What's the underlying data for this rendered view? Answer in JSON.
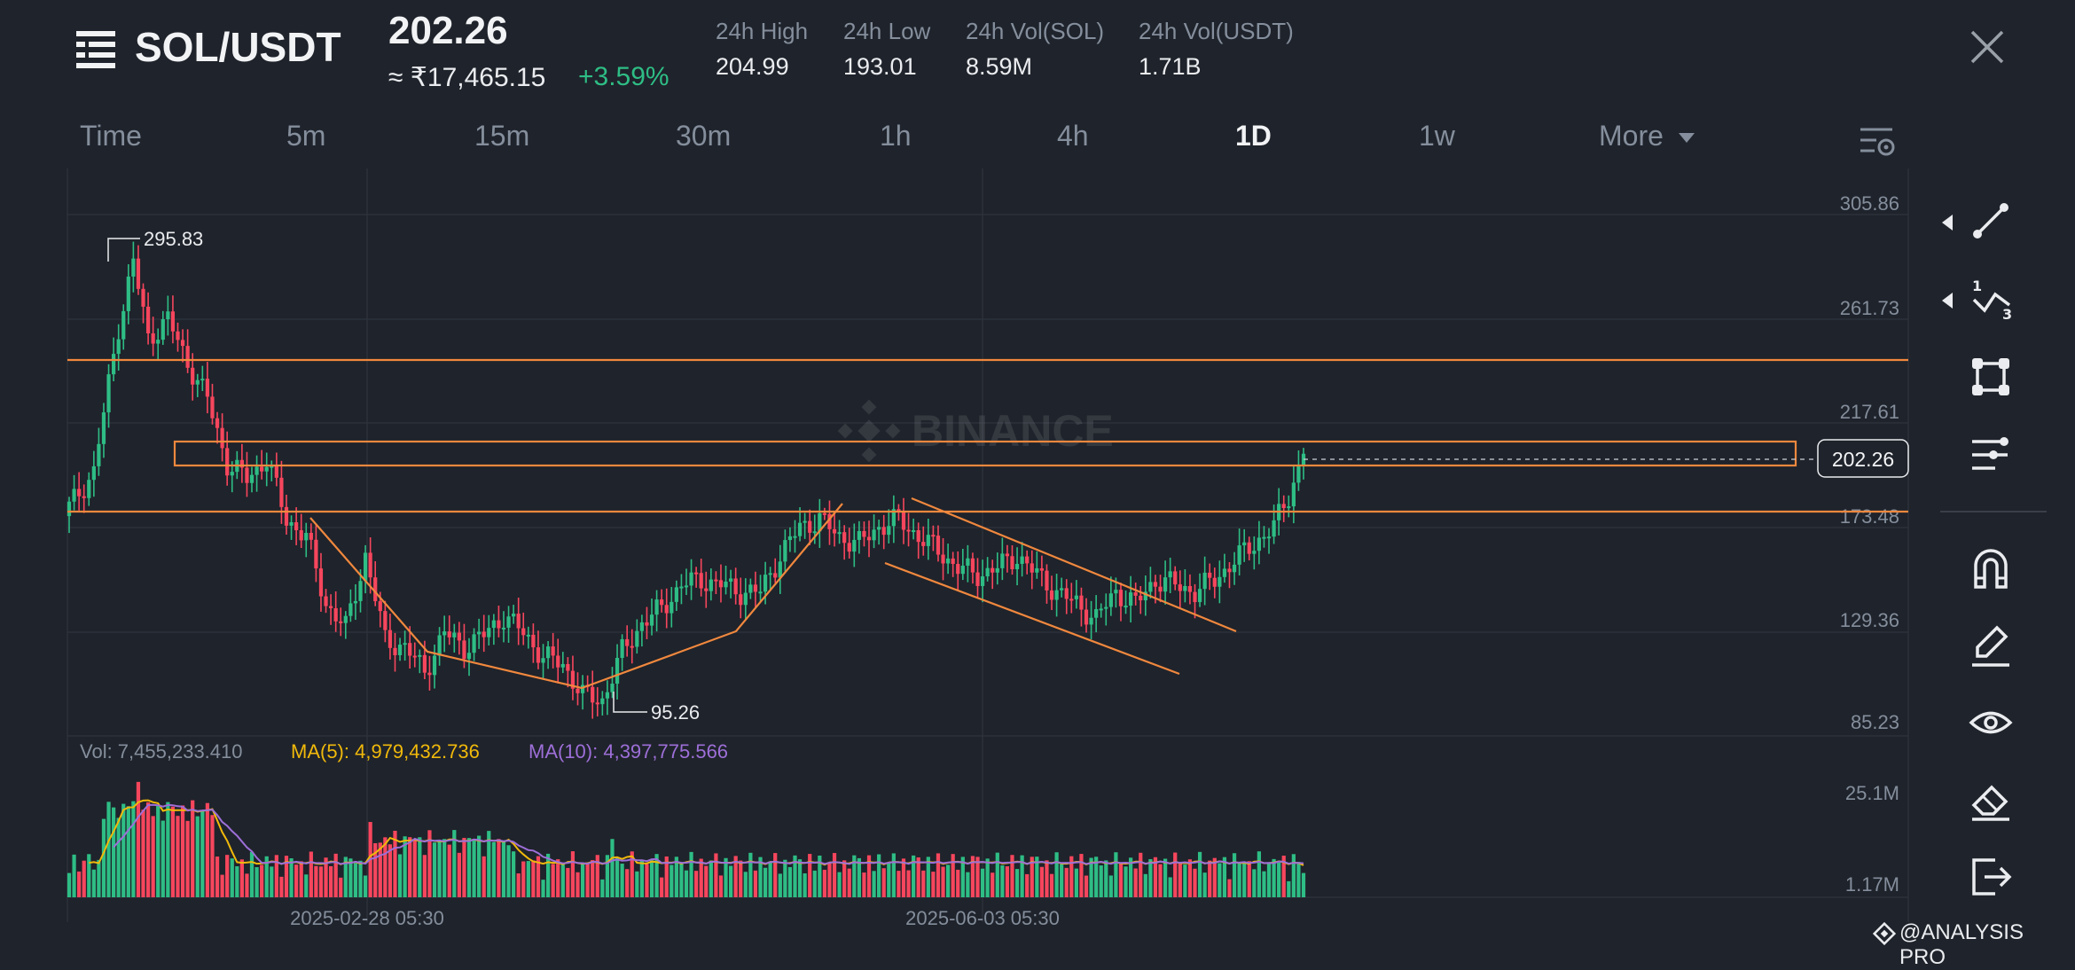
{
  "header": {
    "pair": "SOL/USDT",
    "price": "202.26",
    "fiat_price": "≈ ₹17,465.15",
    "change": "+3.59%",
    "stats": [
      {
        "label": "24h High",
        "value": "204.99"
      },
      {
        "label": "24h Low",
        "value": "193.01"
      },
      {
        "label": "24h Vol(SOL)",
        "value": "8.59M"
      },
      {
        "label": "24h Vol(USDT)",
        "value": "1.71B"
      }
    ]
  },
  "tabs": [
    "Time",
    "5m",
    "15m",
    "30m",
    "1h",
    "4h",
    "1D",
    "1w",
    "More"
  ],
  "active_tab": "1D",
  "price_axis": [
    "305.86",
    "261.73",
    "217.61",
    "173.48",
    "129.36",
    "85.23"
  ],
  "current_price_tag": "202.26",
  "watermark_text": "BINANCE",
  "annotations": {
    "high": "295.83",
    "low": "95.26"
  },
  "volume": {
    "vol_label": "Vol: 7,455,233.410",
    "ma5_label": "MA(5): 4,979,432.736",
    "ma10_label": "MA(10): 4,397,775.566",
    "axis": [
      "25.1M",
      "1.17M"
    ]
  },
  "x_axis": [
    "2025-02-28 05:30",
    "2025-06-03 05:30"
  ],
  "footer": {
    "brand": "@ANALYSIS PRO"
  },
  "colors": {
    "up": "#2ebd85",
    "down": "#f6465d",
    "drawing": "#f0883e",
    "ma5": "#f0b90b",
    "ma10": "#9d6fd8",
    "bg": "#1f232b"
  },
  "toolbar_icons": [
    "trend-line-icon",
    "fibonacci-icon",
    "shape-icon",
    "indicator-icon",
    "magnet-icon",
    "pen-icon",
    "eye-icon",
    "eraser-icon",
    "exit-icon"
  ],
  "chart_data": {
    "type": "candlestick",
    "timeframe": "1D",
    "ylim": [
      85.23,
      305.86
    ],
    "y_ticks": [
      305.86,
      261.73,
      217.61,
      173.48,
      129.36,
      85.23
    ],
    "x_ticks": [
      "2025-02-28 05:30",
      "2025-06-03 05:30"
    ],
    "close_path": [
      {
        "i": 0,
        "v": 180
      },
      {
        "i": 5,
        "v": 195
      },
      {
        "i": 10,
        "v": 255
      },
      {
        "i": 13,
        "v": 282
      },
      {
        "i": 16,
        "v": 250
      },
      {
        "i": 20,
        "v": 258
      },
      {
        "i": 24,
        "v": 240
      },
      {
        "i": 28,
        "v": 225
      },
      {
        "i": 32,
        "v": 198
      },
      {
        "i": 36,
        "v": 192
      },
      {
        "i": 40,
        "v": 200
      },
      {
        "i": 44,
        "v": 175
      },
      {
        "i": 48,
        "v": 168
      },
      {
        "i": 52,
        "v": 140
      },
      {
        "i": 56,
        "v": 130
      },
      {
        "i": 60,
        "v": 160
      },
      {
        "i": 64,
        "v": 125
      },
      {
        "i": 68,
        "v": 122
      },
      {
        "i": 72,
        "v": 112
      },
      {
        "i": 76,
        "v": 128
      },
      {
        "i": 80,
        "v": 122
      },
      {
        "i": 84,
        "v": 127
      },
      {
        "i": 88,
        "v": 135
      },
      {
        "i": 92,
        "v": 128
      },
      {
        "i": 96,
        "v": 118
      },
      {
        "i": 100,
        "v": 115
      },
      {
        "i": 104,
        "v": 102
      },
      {
        "i": 108,
        "v": 100
      },
      {
        "i": 112,
        "v": 120
      },
      {
        "i": 116,
        "v": 132
      },
      {
        "i": 120,
        "v": 138
      },
      {
        "i": 124,
        "v": 148
      },
      {
        "i": 128,
        "v": 150
      },
      {
        "i": 132,
        "v": 148
      },
      {
        "i": 136,
        "v": 145
      },
      {
        "i": 140,
        "v": 145
      },
      {
        "i": 144,
        "v": 160
      },
      {
        "i": 148,
        "v": 172
      },
      {
        "i": 152,
        "v": 175
      },
      {
        "i": 156,
        "v": 168
      },
      {
        "i": 160,
        "v": 165
      },
      {
        "i": 164,
        "v": 172
      },
      {
        "i": 168,
        "v": 175
      },
      {
        "i": 172,
        "v": 168
      },
      {
        "i": 176,
        "v": 162
      },
      {
        "i": 180,
        "v": 155
      },
      {
        "i": 184,
        "v": 152
      },
      {
        "i": 188,
        "v": 155
      },
      {
        "i": 192,
        "v": 160
      },
      {
        "i": 196,
        "v": 152
      },
      {
        "i": 200,
        "v": 145
      },
      {
        "i": 204,
        "v": 140
      },
      {
        "i": 208,
        "v": 134
      },
      {
        "i": 212,
        "v": 145
      },
      {
        "i": 216,
        "v": 140
      },
      {
        "i": 220,
        "v": 150
      },
      {
        "i": 224,
        "v": 148
      },
      {
        "i": 228,
        "v": 145
      },
      {
        "i": 232,
        "v": 150
      },
      {
        "i": 236,
        "v": 158
      },
      {
        "i": 240,
        "v": 165
      },
      {
        "i": 244,
        "v": 172
      },
      {
        "i": 247,
        "v": 185
      },
      {
        "i": 250,
        "v": 202.26
      }
    ],
    "horizontal_levels": [
      240,
      173.48
    ],
    "zone": [
      199,
      209
    ],
    "volume_axis": [
      "25.1M",
      "1.17M"
    ]
  }
}
